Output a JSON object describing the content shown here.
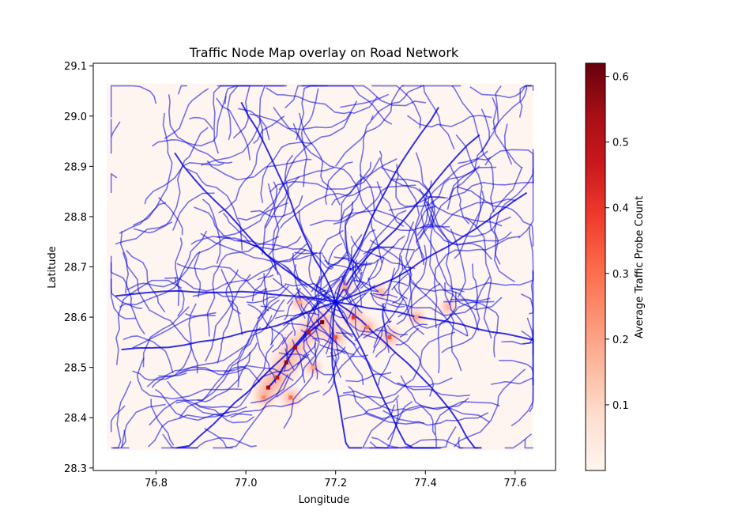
{
  "chart_data": {
    "type": "heatmap",
    "title": "Traffic Node Map overlay on Road Network",
    "xlabel": "Longitude",
    "ylabel": "Latitude",
    "xlim": [
      76.66,
      77.69
    ],
    "ylim": [
      28.295,
      29.105
    ],
    "xticks": [
      76.8,
      77.0,
      77.2,
      77.4,
      77.6
    ],
    "xtick_labels": [
      "76.8",
      "77.0",
      "77.2",
      "77.4",
      "77.6"
    ],
    "yticks": [
      28.3,
      28.4,
      28.5,
      28.6,
      28.7,
      28.8,
      28.9,
      29.0,
      29.1
    ],
    "ytick_labels": [
      "28.3",
      "28.4",
      "28.5",
      "28.6",
      "28.7",
      "28.8",
      "28.9",
      "29.0",
      "29.1"
    ],
    "grid": false,
    "heatmap_extent": {
      "lon": [
        76.69,
        77.64
      ],
      "lat": [
        28.335,
        29.065
      ]
    },
    "colorbar": {
      "label": "Average Traffic Probe Count",
      "range": [
        0.0,
        0.62
      ],
      "ticks": [
        0.1,
        0.2,
        0.3,
        0.4,
        0.5,
        0.6
      ],
      "tick_labels": [
        "0.1",
        "0.2",
        "0.3",
        "0.4",
        "0.5",
        "0.6"
      ],
      "colormap": "Reds",
      "colors": [
        "#fff5f0",
        "#fee0d2",
        "#fcbba1",
        "#fc9272",
        "#fb6a4a",
        "#ef3b2c",
        "#cb181d",
        "#a50f15",
        "#67000d"
      ]
    },
    "road_color": "#0000dd",
    "hotspots": [
      {
        "lon": 77.05,
        "lat": 28.46,
        "value": 0.55
      },
      {
        "lon": 77.07,
        "lat": 28.48,
        "value": 0.5
      },
      {
        "lon": 77.09,
        "lat": 28.51,
        "value": 0.58
      },
      {
        "lon": 77.11,
        "lat": 28.54,
        "value": 0.55
      },
      {
        "lon": 77.14,
        "lat": 28.57,
        "value": 0.5
      },
      {
        "lon": 77.17,
        "lat": 28.59,
        "value": 0.6
      },
      {
        "lon": 77.2,
        "lat": 28.56,
        "value": 0.35
      },
      {
        "lon": 77.24,
        "lat": 28.6,
        "value": 0.4
      },
      {
        "lon": 77.27,
        "lat": 28.58,
        "value": 0.3
      },
      {
        "lon": 77.32,
        "lat": 28.56,
        "value": 0.35
      },
      {
        "lon": 77.38,
        "lat": 28.6,
        "value": 0.2
      },
      {
        "lon": 77.1,
        "lat": 28.44,
        "value": 0.3
      },
      {
        "lon": 77.04,
        "lat": 28.44,
        "value": 0.25
      },
      {
        "lon": 77.15,
        "lat": 28.5,
        "value": 0.2
      },
      {
        "lon": 77.22,
        "lat": 28.66,
        "value": 0.2
      },
      {
        "lon": 77.3,
        "lat": 28.65,
        "value": 0.15
      },
      {
        "lon": 77.12,
        "lat": 28.63,
        "value": 0.2
      },
      {
        "lon": 77.45,
        "lat": 28.62,
        "value": 0.15
      }
    ]
  }
}
